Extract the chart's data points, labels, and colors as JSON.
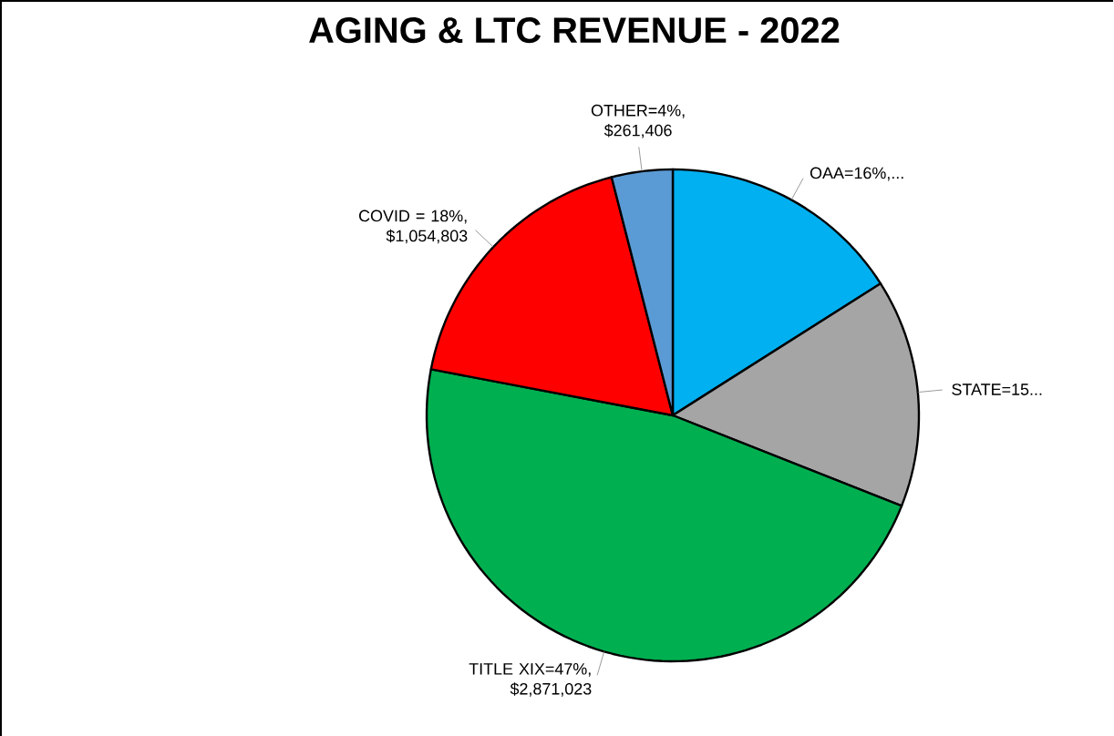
{
  "chart_data": {
    "type": "pie",
    "title": "AGING & LTC REVENUE - 2022",
    "categories": [
      "OAA=16%,...",
      "STATE=15...",
      "TITLE XIX=47%, $2,871,023",
      "COVID = 18%, $1,054,803",
      "OTHER=4%, $261,406"
    ],
    "values": [
      16,
      15,
      47,
      18,
      4
    ],
    "colors": [
      "#00b0f0",
      "#a5a5a5",
      "#00b050",
      "#ff0000",
      "#5b9bd5"
    ]
  }
}
